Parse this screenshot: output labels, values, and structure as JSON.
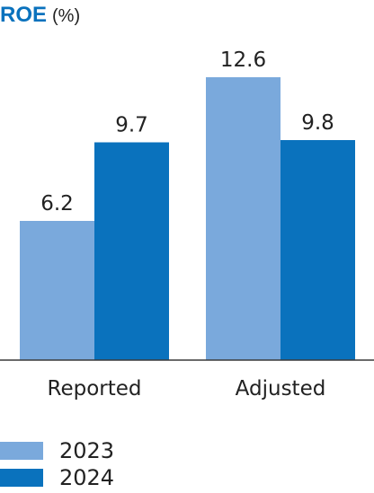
{
  "chart_data": {
    "type": "bar",
    "title": "ROE",
    "unit": "(%)",
    "categories": [
      "Reported",
      "Adjusted"
    ],
    "series": [
      {
        "name": "2023",
        "values": [
          6.2,
          12.6
        ],
        "color": "#7aa9dc"
      },
      {
        "name": "2024",
        "values": [
          9.7,
          9.8
        ],
        "color": "#0a72bd"
      }
    ],
    "data_labels": true,
    "ylim": [
      0,
      15
    ],
    "grid": false,
    "legend_position": "bottom-left"
  }
}
